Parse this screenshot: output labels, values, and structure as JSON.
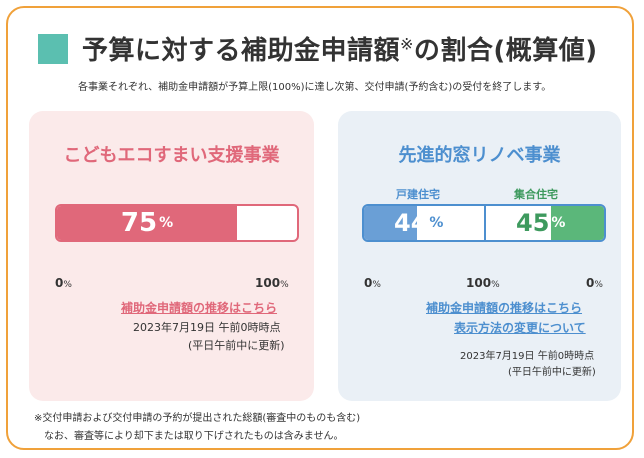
{
  "header": {
    "title": "予算に対する補助金申請額",
    "title_mark": "※",
    "title_suffix": "の割合(概算値)",
    "subtitle": "各事業それぞれ、補助金申請額が予算上限(100%)に達し次第、交付申請(予約含む)の受付を終了します。"
  },
  "left_panel": {
    "title": "こどもエコすまい支援事業",
    "percent": 75,
    "percent_label": "75",
    "percent_unit": "%",
    "scale_min": "0",
    "scale_max": "100",
    "scale_unit": "%",
    "link": "補助金申請額の推移はこちら",
    "date": "2023年7月19日 午前0時時点",
    "update": "(平日午前中に更新)"
  },
  "right_panel": {
    "title": "先進的窓リノベ事業",
    "house_label": "戸建住宅",
    "apartment_label": "集合住宅",
    "house_percent": 44,
    "house_percent_label": "44",
    "apartment_percent": 45,
    "apartment_percent_label": "45",
    "percent_unit": "%",
    "scale_left_min": "0",
    "scale_mid": "100",
    "scale_right_min": "0",
    "scale_unit": "%",
    "link1": "補助金申請額の推移はこちら",
    "link2": "表示方法の変更について",
    "date": "2023年7月19日 午前0時時点",
    "update": "(平日午前中に更新)"
  },
  "footnote": {
    "line1": "※交付申請および交付申請の予約が提出された総額(審査中のものも含む)",
    "line2": "なお、審査等により却下または取り下げされたものは含みません。"
  },
  "colors": {
    "accent_orange": "#f0a13a",
    "teal": "#5bbfb0",
    "red": "#e0687a",
    "blue": "#4d8fcf",
    "green": "#5bb77a"
  }
}
